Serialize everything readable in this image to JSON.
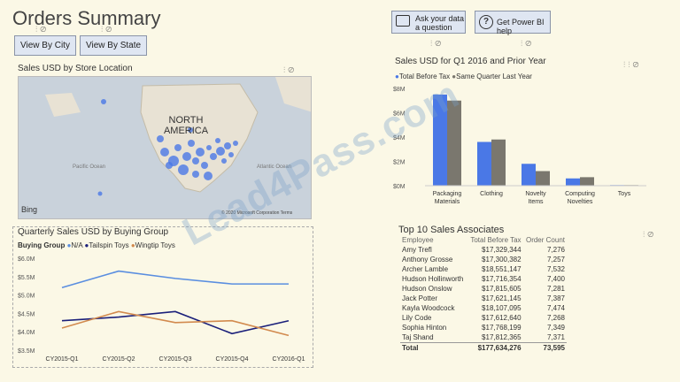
{
  "page": {
    "title": "Orders Summary"
  },
  "buttons": {
    "city": "View By City",
    "state": "View By State",
    "ask": "Ask your data a question",
    "help": "Get Power BI help"
  },
  "map": {
    "title": "Sales USD by Store Location",
    "label_north": "NORTH",
    "label_america": "AMERICA",
    "label_pacific": "Pacific Ocean",
    "label_atlantic": "Atlantic Ocean",
    "attribution": "Bing",
    "copyright": "© 2020 Microsoft Corporation Terms"
  },
  "bar": {
    "title": "Sales USD for Q1 2016 and Prior Year",
    "legend": [
      "Total Before Tax",
      "Same Quarter Last Year"
    ],
    "colors": [
      "#4a78e6",
      "#7a776e"
    ]
  },
  "line": {
    "title": "Quarterly Sales USD by Buying Group",
    "legend_label": "Buying Group",
    "colors": [
      "#5a8ee0",
      "#1a1f7a",
      "#d28a4e"
    ]
  },
  "table": {
    "title": "Top 10 Sales Associates",
    "headers": [
      "Employee",
      "Total Before Tax",
      "Order Count"
    ],
    "rows": [
      [
        "Amy Trefl",
        "$17,329,344",
        "7,276"
      ],
      [
        "Anthony Grosse",
        "$17,300,382",
        "7,257"
      ],
      [
        "Archer Lamble",
        "$18,551,147",
        "7,532"
      ],
      [
        "Hudson Hollinworth",
        "$17,716,354",
        "7,400"
      ],
      [
        "Hudson Onslow",
        "$17,815,605",
        "7,281"
      ],
      [
        "Jack Potter",
        "$17,621,145",
        "7,387"
      ],
      [
        "Kayla Woodcock",
        "$18,107,095",
        "7,474"
      ],
      [
        "Lily Code",
        "$17,612,640",
        "7,268"
      ],
      [
        "Sophia Hinton",
        "$17,768,199",
        "7,349"
      ],
      [
        "Taj Shand",
        "$17,812,365",
        "7,371"
      ]
    ],
    "total": [
      "Total",
      "$177,634,276",
      "73,595"
    ]
  },
  "watermark": "Lead4Pass.com",
  "chart_data": [
    {
      "type": "bar",
      "title": "Sales USD for Q1 2016 and Prior Year",
      "categories": [
        "Packaging Materials",
        "Clothing",
        "Novelty Items",
        "Computing Novelties",
        "Toys"
      ],
      "series": [
        {
          "name": "Total Before Tax",
          "values": [
            7.5,
            3.6,
            1.8,
            0.6,
            0.05
          ]
        },
        {
          "name": "Same Quarter Last Year",
          "values": [
            7.0,
            3.8,
            1.2,
            0.7,
            0.05
          ]
        }
      ],
      "yticks": [
        "$0M",
        "$2M",
        "$4M",
        "$6M",
        "$8M"
      ],
      "ylim": [
        0,
        8
      ]
    },
    {
      "type": "line",
      "title": "Quarterly Sales USD by Buying Group",
      "x": [
        "CY2015-Q1",
        "CY2015-Q2",
        "CY2015-Q3",
        "CY2015-Q4",
        "CY2016-Q1"
      ],
      "series": [
        {
          "name": "N/A",
          "values": [
            5.2,
            5.65,
            5.45,
            5.3,
            5.3
          ]
        },
        {
          "name": "Tailspin Toys",
          "values": [
            4.3,
            4.4,
            4.55,
            3.95,
            4.3
          ]
        },
        {
          "name": "Wingtip Toys",
          "values": [
            4.1,
            4.55,
            4.25,
            4.3,
            3.9
          ]
        }
      ],
      "yticks": [
        "$3.5M",
        "$4.0M",
        "$4.5M",
        "$5.0M",
        "$5.5M",
        "$6.0M"
      ],
      "ylim": [
        3.5,
        6.0
      ]
    }
  ]
}
